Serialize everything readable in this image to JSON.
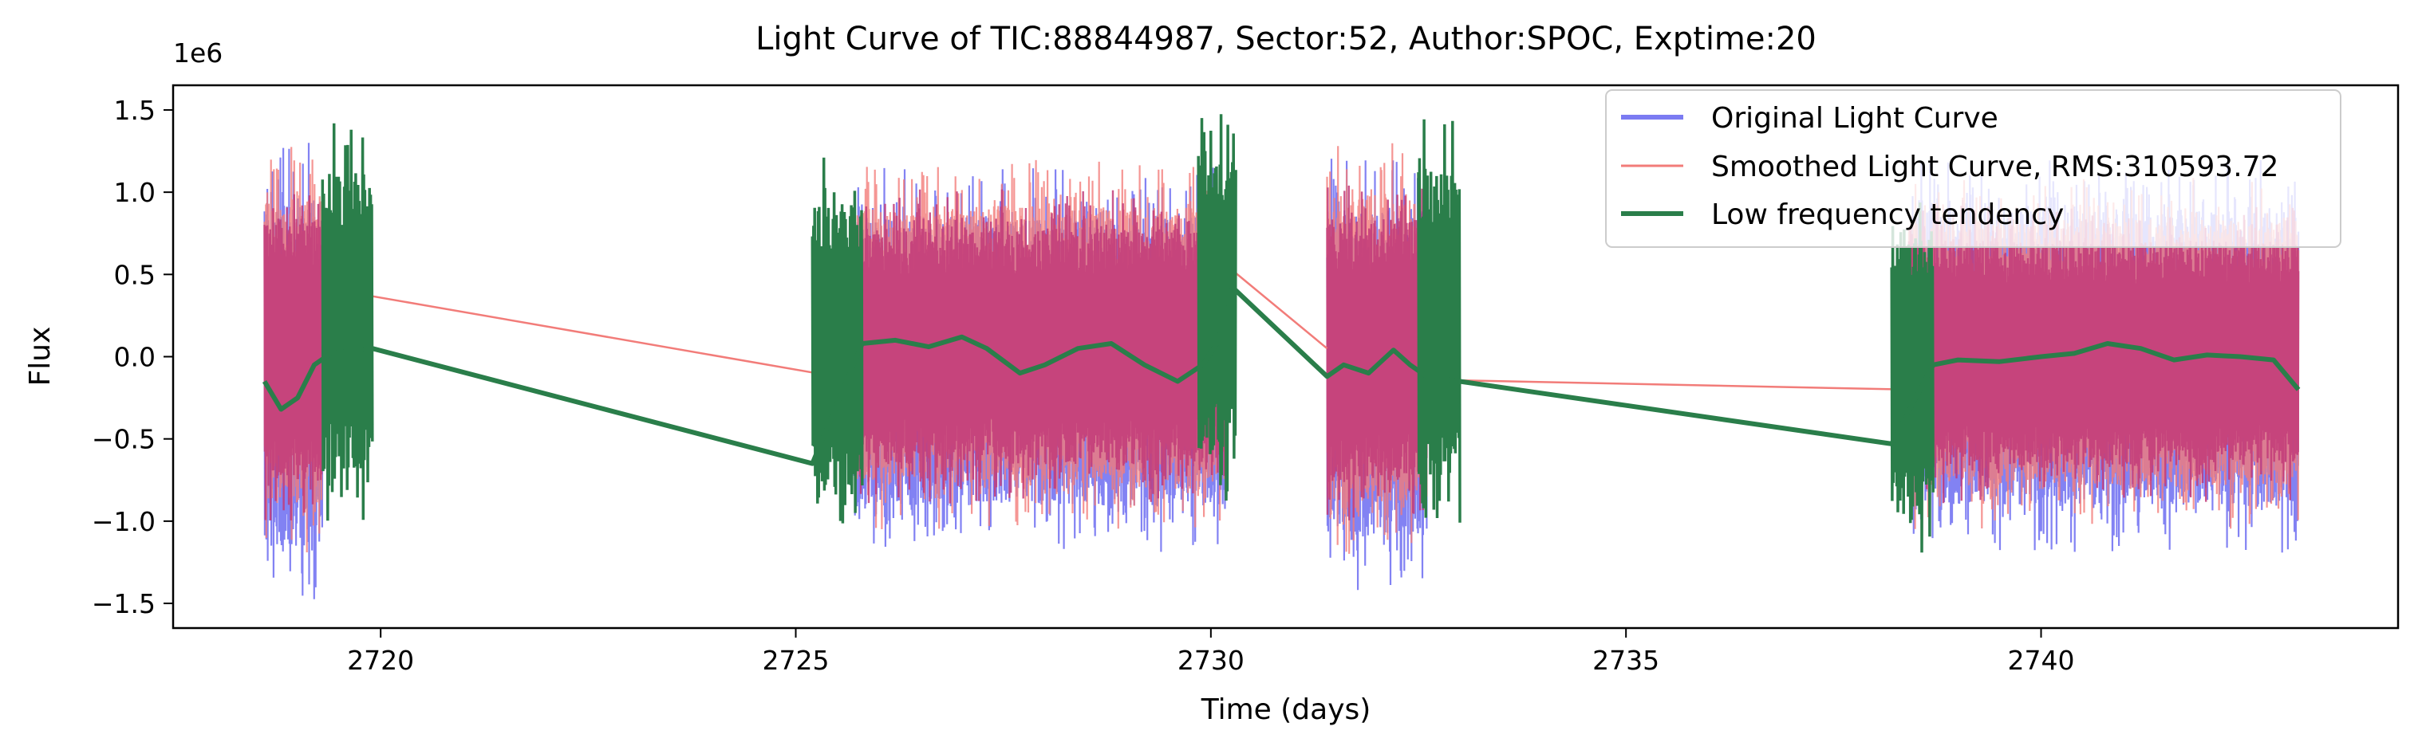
{
  "chart_data": {
    "type": "line",
    "title": "Light Curve of TIC:88844987, Sector:52, Author:SPOC, Exptime:20",
    "xlabel": "Time (days)",
    "ylabel": "Flux",
    "y_scale_label": "1e6",
    "xlim": [
      2717.5,
      2744.3
    ],
    "ylim": [
      -1.65,
      1.65
    ],
    "x_ticks": [
      2720,
      2725,
      2730,
      2735,
      2740
    ],
    "x_tick_labels": [
      "2720",
      "2725",
      "2730",
      "2735",
      "2740"
    ],
    "y_ticks": [
      -1.5,
      -1.0,
      -0.5,
      0.0,
      0.5,
      1.0,
      1.5
    ],
    "y_tick_labels": [
      "−1.5",
      "−1.0",
      "−0.5",
      "0.0",
      "0.5",
      "1.0",
      "1.5"
    ],
    "grid": false,
    "legend_position": "top-right",
    "series": [
      {
        "name": "Original Light Curve",
        "color": "#7b7bf2",
        "style": "dense-band",
        "segments": [
          {
            "x": [
              2718.6,
              2719.3
            ],
            "low": -1.5,
            "high": 1.3
          },
          {
            "x": [
              2725.7,
              2730.2
            ],
            "low": -1.2,
            "high": 1.15
          },
          {
            "x": [
              2731.4,
              2732.6
            ],
            "low": -1.42,
            "high": 1.25
          },
          {
            "x": [
              2738.4,
              2743.1
            ],
            "low": -1.2,
            "high": 1.2
          }
        ]
      },
      {
        "name": "Smoothed Light Curve, RMS:310593.72",
        "color": "#f27c79",
        "band_color": "#c23a78",
        "style": "dense-band-with-gap-lines",
        "segments": [
          {
            "x": [
              2718.6,
              2719.3
            ],
            "low": -1.2,
            "high": 1.3
          },
          {
            "x": [
              2725.7,
              2730.2
            ],
            "low": -1.05,
            "high": 1.2
          },
          {
            "x": [
              2731.4,
              2732.6
            ],
            "low": -1.2,
            "high": 1.3
          },
          {
            "x": [
              2738.4,
              2743.1
            ],
            "low": -1.05,
            "high": 1.1
          }
        ],
        "gap_lines": [
          {
            "x": [
              2719.3,
              2725.7
            ],
            "y": [
              0.42,
              -0.14
            ]
          },
          {
            "x": [
              2730.2,
              2731.4
            ],
            "y": [
              0.55,
              0.05
            ]
          },
          {
            "x": [
              2732.6,
              2738.4
            ],
            "y": [
              -0.14,
              -0.2
            ]
          }
        ]
      },
      {
        "name": "Low frequency tendency",
        "color": "#2a7e4a",
        "style": "line-with-noise-blocks",
        "noise_blocks": [
          {
            "x": [
              2719.3,
              2719.9
            ],
            "low": -1.0,
            "high": 1.42
          },
          {
            "x": [
              2725.2,
              2725.8
            ],
            "low": -1.1,
            "high": 1.22
          },
          {
            "x": [
              2729.85,
              2730.3
            ],
            "low": -0.9,
            "high": 1.5
          },
          {
            "x": [
              2732.5,
              2733.0
            ],
            "low": -1.1,
            "high": 1.45
          },
          {
            "x": [
              2738.2,
              2738.7
            ],
            "low": -1.25,
            "high": 1.05
          }
        ],
        "trend": {
          "x": [
            2718.6,
            2718.8,
            2719.0,
            2719.2,
            2719.4,
            2719.9,
            2725.2,
            2725.8,
            2726.2,
            2726.6,
            2727.0,
            2727.3,
            2727.7,
            2728.0,
            2728.4,
            2728.8,
            2729.2,
            2729.6,
            2729.9,
            2730.1,
            2730.2,
            2731.4,
            2731.6,
            2731.9,
            2732.2,
            2732.4,
            2732.6,
            2733.0,
            2738.2,
            2738.7,
            2739.0,
            2739.5,
            2740.0,
            2740.4,
            2740.8,
            2741.2,
            2741.6,
            2742.0,
            2742.4,
            2742.8,
            2743.1
          ],
          "y": [
            -0.15,
            -0.32,
            -0.25,
            -0.05,
            0.02,
            0.05,
            -0.65,
            0.08,
            0.1,
            0.06,
            0.12,
            0.05,
            -0.1,
            -0.05,
            0.05,
            0.08,
            -0.05,
            -0.15,
            -0.05,
            0.1,
            0.45,
            -0.12,
            -0.05,
            -0.1,
            0.04,
            -0.05,
            -0.12,
            -0.15,
            -0.53,
            -0.05,
            -0.02,
            -0.03,
            0.0,
            0.02,
            0.08,
            0.05,
            -0.02,
            0.01,
            0.0,
            -0.02,
            -0.2
          ]
        }
      }
    ]
  }
}
